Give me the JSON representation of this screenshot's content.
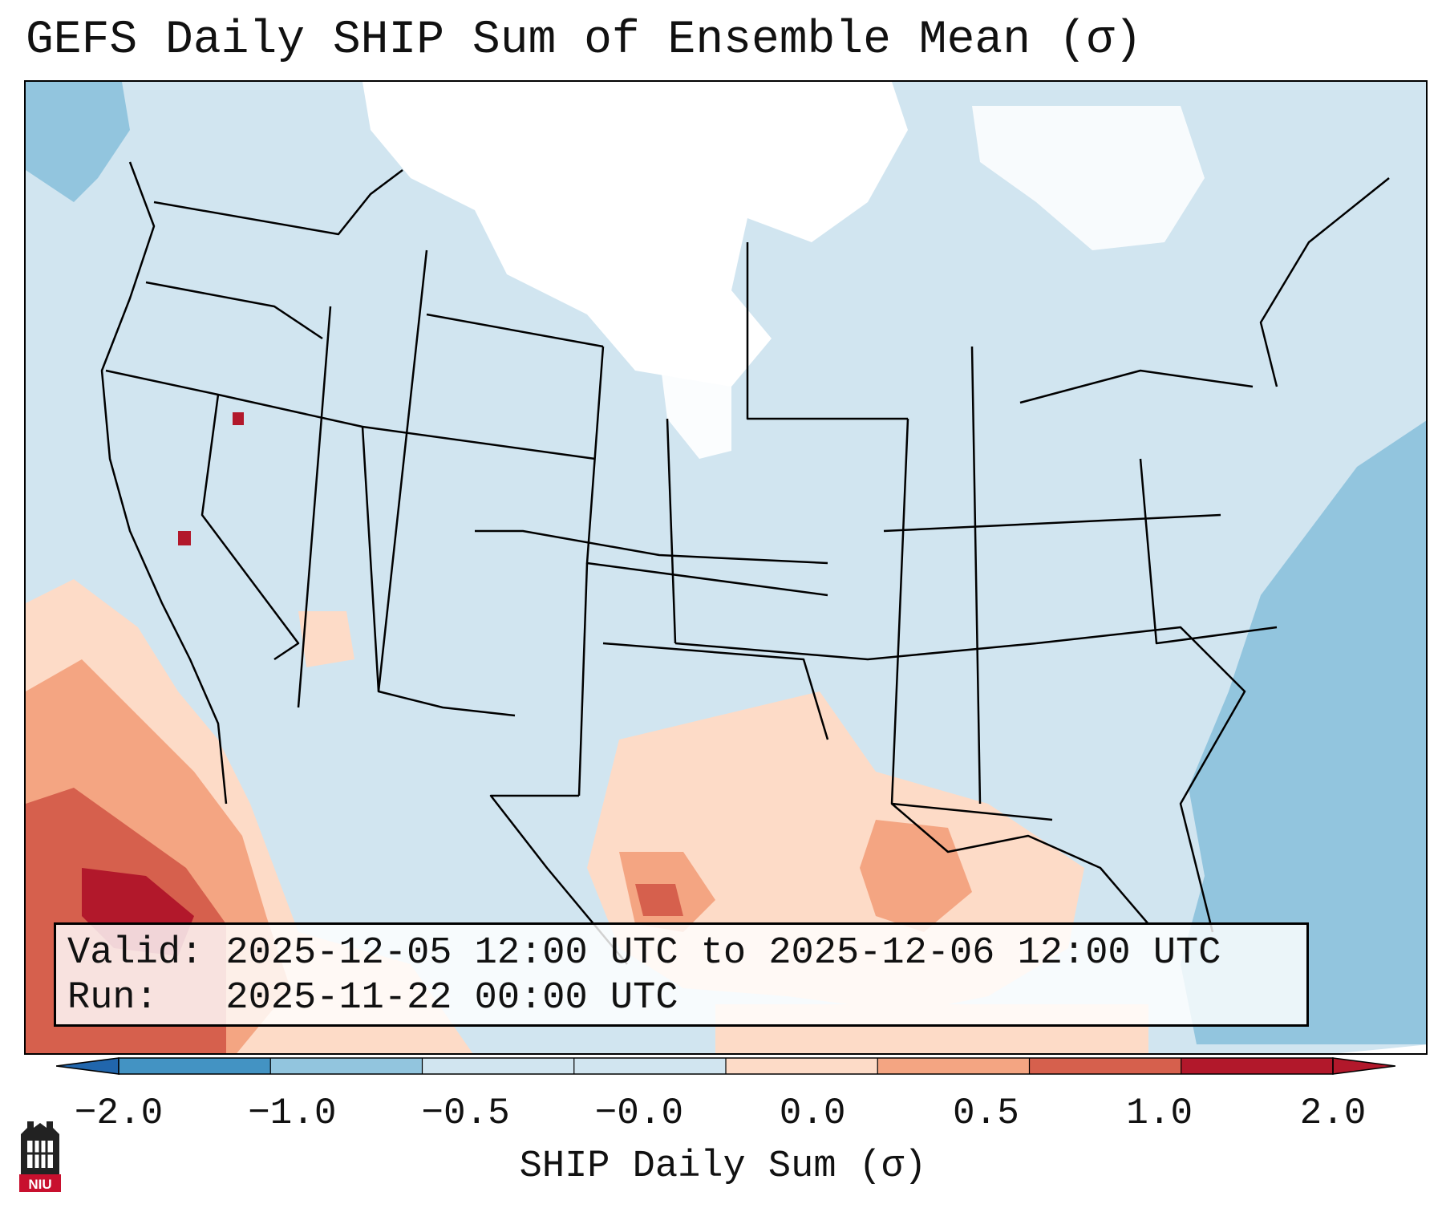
{
  "title": "GEFS Daily SHIP Sum of Ensemble Mean (σ)",
  "info": {
    "valid_line": "Valid: 2025-12-05 12:00 UTC to 2025-12-06 12:00 UTC",
    "run_line": "Run:   2025-11-22 00:00 UTC"
  },
  "colorbar": {
    "label": "SHIP Daily Sum (σ)",
    "ticks": [
      "−2.0",
      "−1.0",
      "−0.5",
      "−0.0",
      "0.0",
      "0.5",
      "1.0",
      "2.0"
    ],
    "colors": [
      "#4393c3",
      "#92c5de",
      "#d1e5f0",
      "#d1e5f0",
      "#fddbc7",
      "#f4a582",
      "#d6604d",
      "#b2182b"
    ],
    "extend_low_color": "#2166ac",
    "extend_high_color": "#b2182b"
  },
  "logo": {
    "text": "NIU",
    "color": "#c8102e"
  }
}
